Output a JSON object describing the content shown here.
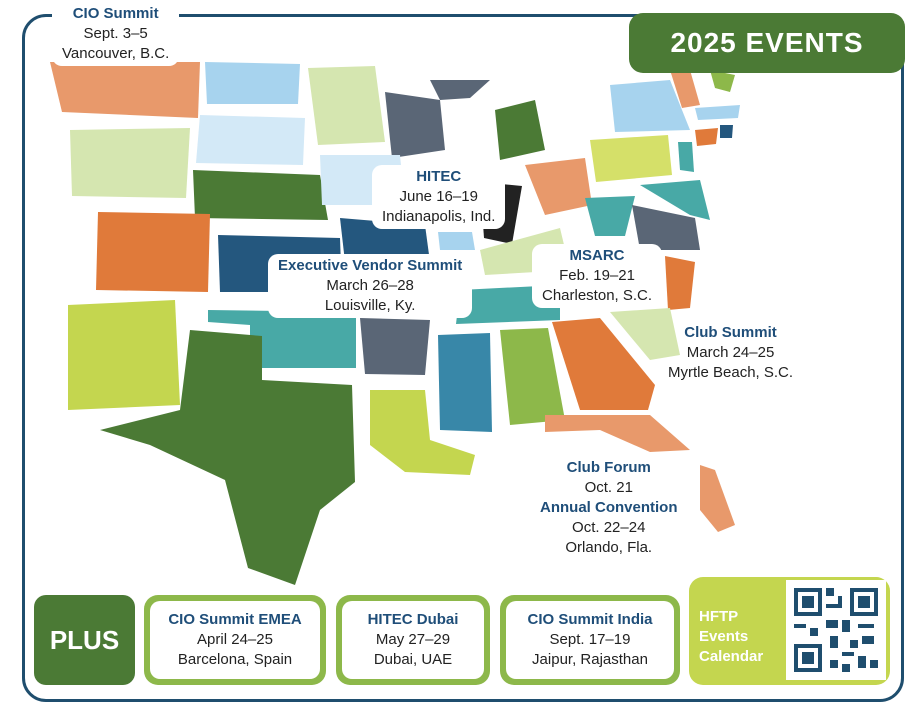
{
  "badge": "2025 EVENTS",
  "map_labels": {
    "cio_summit": {
      "title": "CIO Summit",
      "date": "Sept. 3–5",
      "place": "Vancouver, B.C."
    },
    "hitec": {
      "title": "HITEC",
      "date": "June 16–19",
      "place": "Indianapolis, Ind."
    },
    "exec_vendor": {
      "title": "Executive Vendor Summit",
      "date": "March 26–28",
      "place": "Louisville, Ky."
    },
    "msarc": {
      "title": "MSARC",
      "date": "Feb. 19–21",
      "place": "Charleston, S.C."
    },
    "club_summit": {
      "title": "Club Summit",
      "date": "March 24–25",
      "place": "Myrtle Beach, S.C."
    },
    "club_forum": {
      "title": "Club Forum",
      "date": "Oct. 21"
    },
    "annual_convention": {
      "title": "Annual Convention",
      "date": "Oct. 22–24",
      "place": "Orlando, Fla."
    }
  },
  "plus_label": "PLUS",
  "international": [
    {
      "title": "CIO Summit EMEA",
      "date": "April 24–25",
      "place": "Barcelona, Spain"
    },
    {
      "title": "HITEC Dubai",
      "date": "May 27–29",
      "place": "Dubai, UAE"
    },
    {
      "title": "CIO Summit India",
      "date": "Sept. 17–19",
      "place": "Jaipur, Rajasthan"
    }
  ],
  "calendar": {
    "line1": "HFTP",
    "line2": "Events",
    "line3": "Calendar"
  },
  "colors": {
    "navy": "#1f4e6e",
    "dark_green": "#4b7a35",
    "lime": "#c4d64f",
    "orange": "#e07a3a",
    "salmon": "#e8996b",
    "teal": "#48a9a6",
    "light_blue": "#a7d3ee"
  }
}
